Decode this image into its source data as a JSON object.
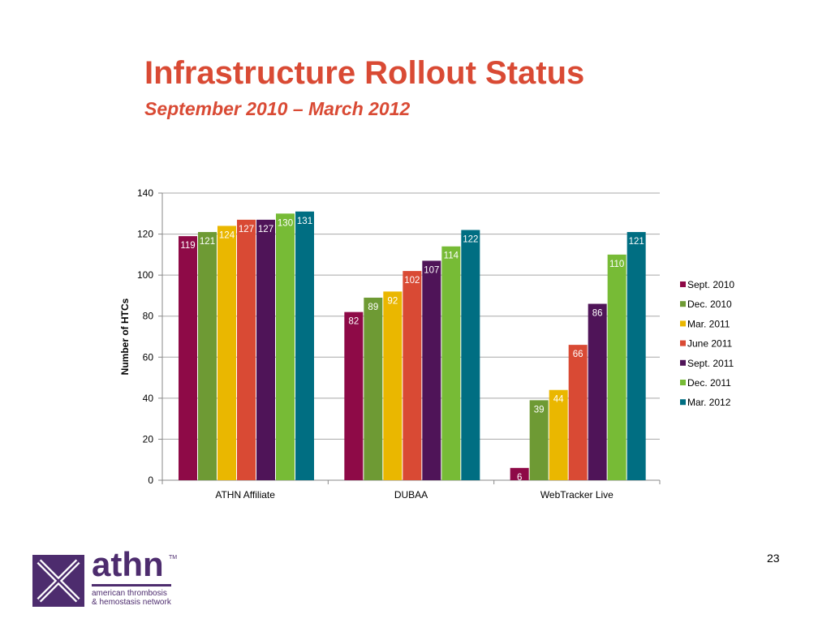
{
  "slide": {
    "title": "Infrastructure Rollout Status",
    "subtitle": "September 2010 – March 2012",
    "page_number": "23"
  },
  "logo": {
    "word": "athn",
    "trademark": "TM",
    "line1": "american thrombosis",
    "line2": "& hemostasis network",
    "color": "#4d2c6e"
  },
  "chart_data": {
    "type": "bar",
    "title": "",
    "xlabel": "",
    "ylabel": "Number of HTCs",
    "ylim": [
      0,
      140
    ],
    "yticks": [
      0,
      20,
      40,
      60,
      80,
      100,
      120,
      140
    ],
    "grid": true,
    "legend_position": "right",
    "categories": [
      "ATHN Affiliate",
      "DUBAA",
      "WebTracker Live"
    ],
    "series": [
      {
        "name": "Sept. 2010",
        "color": "#8e0a47",
        "values": [
          119,
          82,
          6
        ]
      },
      {
        "name": "Dec. 2010",
        "color": "#6e9a34",
        "values": [
          121,
          89,
          39
        ]
      },
      {
        "name": "Mar. 2011",
        "color": "#eab700",
        "values": [
          124,
          92,
          44
        ]
      },
      {
        "name": "June 2011",
        "color": "#d94a34",
        "values": [
          127,
          102,
          66
        ]
      },
      {
        "name": "Sept. 2011",
        "color": "#4f1458",
        "values": [
          127,
          107,
          86
        ]
      },
      {
        "name": "Dec. 2011",
        "color": "#77bb36",
        "values": [
          130,
          114,
          110
        ]
      },
      {
        "name": "Mar. 2012",
        "color": "#006e82",
        "values": [
          131,
          122,
          121
        ]
      }
    ]
  }
}
